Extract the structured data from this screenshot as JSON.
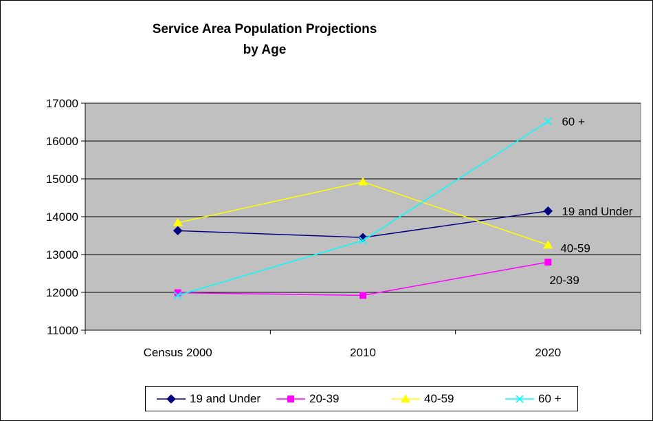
{
  "chart_data": {
    "type": "line",
    "title": "Service Area Population Projections\nby Age",
    "categories": [
      "Census 2000",
      "2010",
      "2020"
    ],
    "ylim": [
      11000,
      17000
    ],
    "yticks": [
      11000,
      12000,
      13000,
      14000,
      15000,
      16000,
      17000
    ],
    "grid": true,
    "legend_position": "bottom",
    "plot_background": "#C0C0C0",
    "series": [
      {
        "name": "19 and Under",
        "values": [
          13630,
          13450,
          14150
        ],
        "color": "#000080",
        "marker": "diamond",
        "end_label": "19 and Under"
      },
      {
        "name": "20-39",
        "values": [
          11990,
          11920,
          12800
        ],
        "color": "#FF00FF",
        "marker": "square",
        "end_label": "20-39"
      },
      {
        "name": "40-59",
        "values": [
          13840,
          14920,
          13250
        ],
        "color": "#FFFF00",
        "marker": "triangle",
        "end_label": "40-59"
      },
      {
        "name": "60 +",
        "values": [
          11920,
          13370,
          16520
        ],
        "color": "#00FFFF",
        "marker": "x",
        "end_label": "60 +"
      }
    ]
  }
}
